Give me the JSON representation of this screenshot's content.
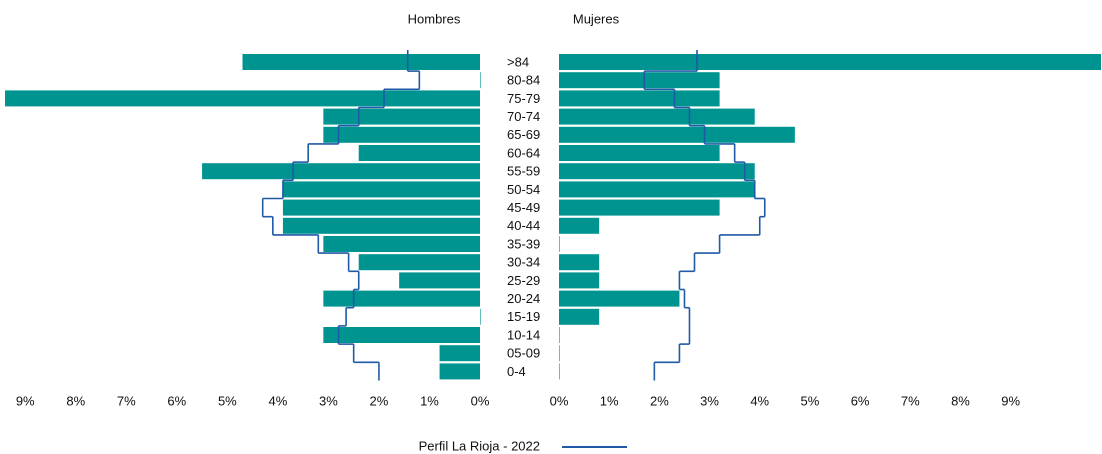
{
  "chart_data": {
    "type": "pyramid",
    "categories": [
      ">84",
      "80-84",
      "75-79",
      "70-74",
      "65-69",
      "60-64",
      "55-59",
      "50-54",
      "45-49",
      "40-44",
      "35-39",
      "30-34",
      "25-29",
      "20-24",
      "15-19",
      "10-14",
      "05-09",
      "0-4"
    ],
    "series": [
      {
        "name": "Hombres",
        "color": "#009490",
        "xlim": [
          0,
          9.4
        ],
        "values": [
          4.7,
          0,
          9.4,
          3.1,
          3.1,
          2.4,
          5.5,
          3.9,
          3.9,
          3.9,
          3.1,
          2.4,
          1.6,
          3.1,
          0,
          3.1,
          0.8,
          0.8
        ]
      },
      {
        "name": "Mujeres",
        "color": "#009490",
        "xlim": [
          0,
          10.8
        ],
        "values": [
          10.8,
          3.2,
          3.2,
          3.9,
          4.7,
          3.2,
          3.9,
          3.9,
          3.2,
          0.8,
          0,
          0.8,
          0.8,
          2.4,
          0.8,
          0,
          0,
          0
        ]
      }
    ],
    "profile": {
      "name": "Perfil La Rioja - 2022",
      "color": "#1f5aa6",
      "values": [
        [
          1.43,
          1.2,
          1.9,
          2.4,
          2.8,
          3.4,
          3.7,
          3.9,
          4.3,
          4.1,
          3.2,
          2.6,
          2.4,
          2.5,
          2.65,
          2.8,
          2.5,
          2.0
        ],
        [
          2.75,
          1.7,
          2.3,
          2.6,
          2.9,
          3.5,
          3.7,
          3.9,
          4.1,
          4.0,
          3.2,
          2.7,
          2.4,
          2.5,
          2.6,
          2.6,
          2.4,
          1.9
        ]
      ]
    },
    "xticks": [
      {
        "value": 0,
        "label": "0%"
      },
      {
        "value": 1,
        "label": "1%"
      },
      {
        "value": 2,
        "label": "2%"
      },
      {
        "value": 3,
        "label": "3%"
      },
      {
        "value": 4,
        "label": "4%"
      },
      {
        "value": 5,
        "label": "5%"
      },
      {
        "value": 6,
        "label": "6%"
      },
      {
        "value": 7,
        "label": "7%"
      },
      {
        "value": 8,
        "label": "8%"
      },
      {
        "value": 9,
        "label": "9%"
      }
    ]
  }
}
